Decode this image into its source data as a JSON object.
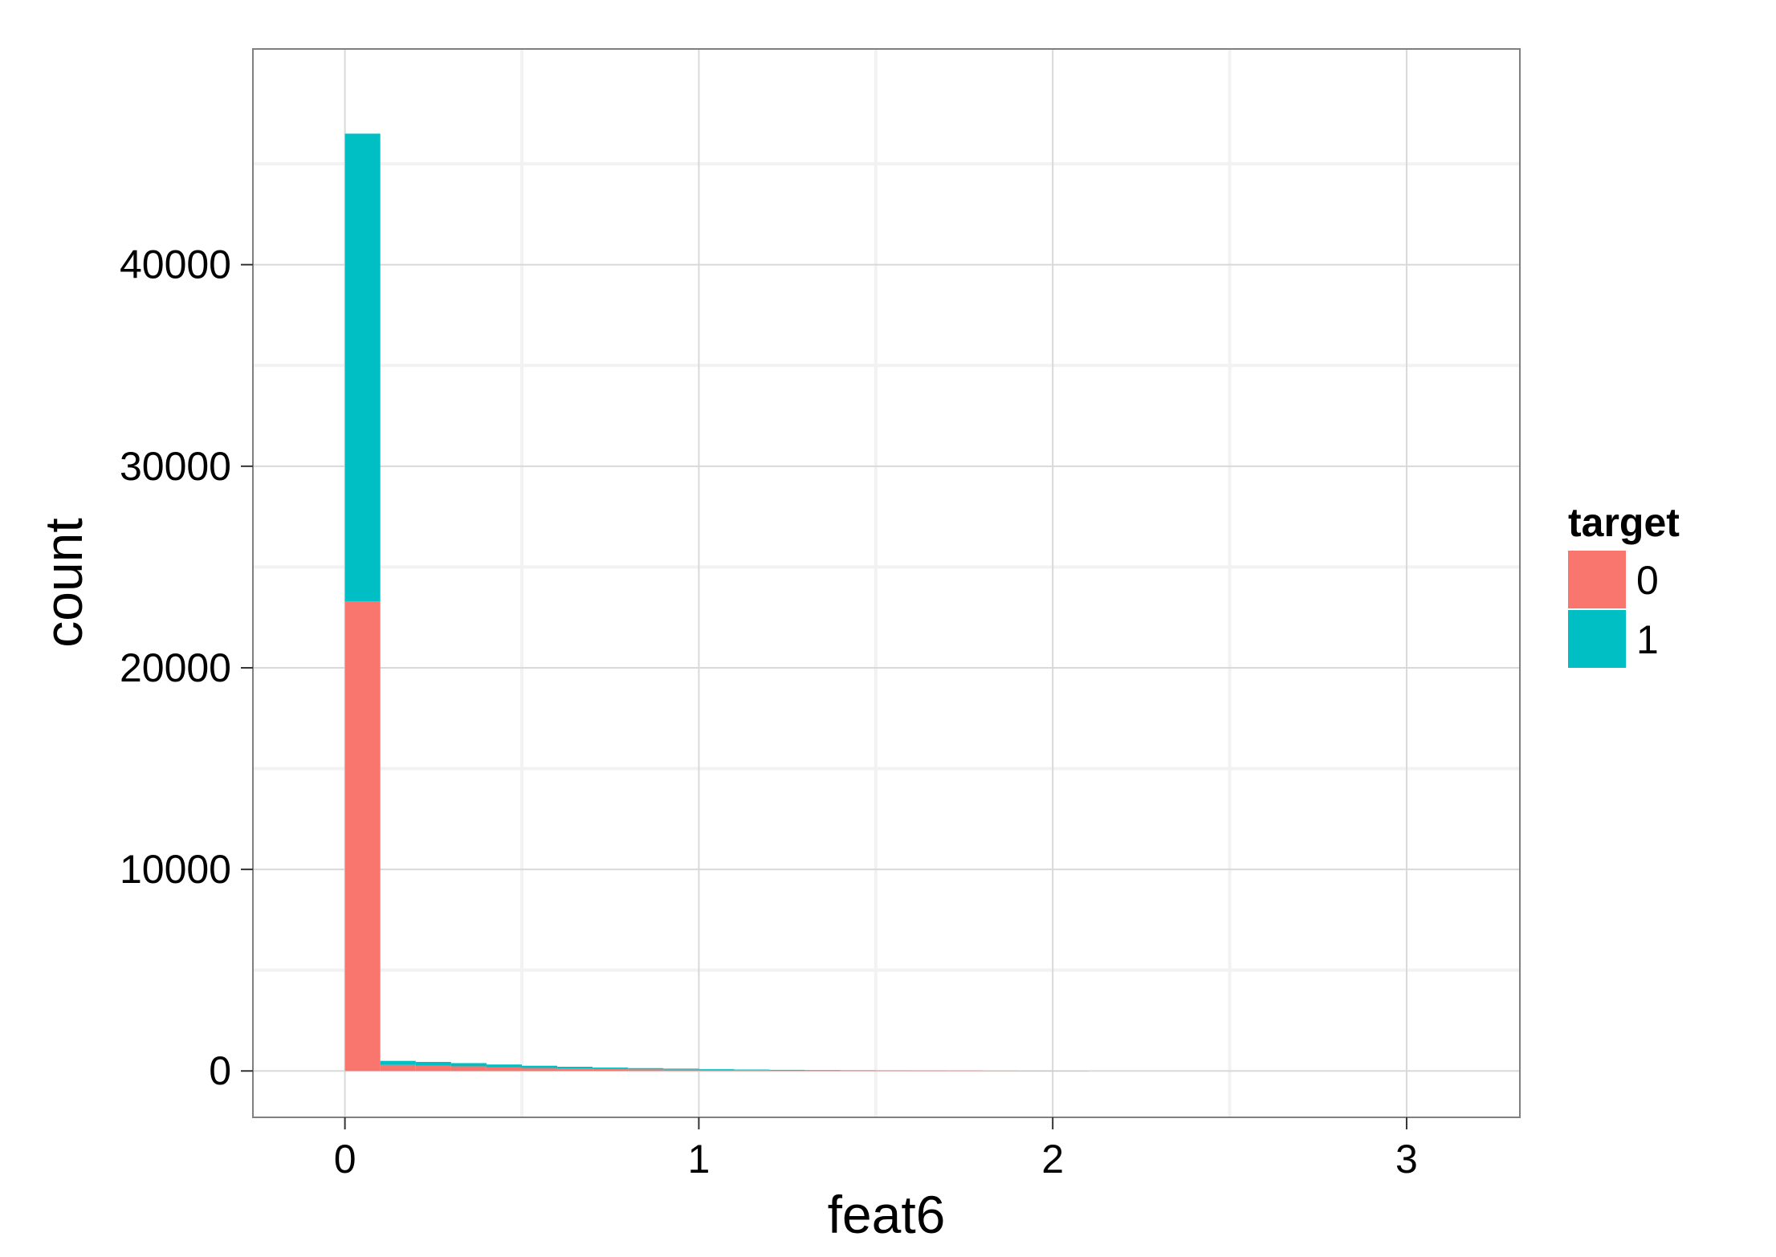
{
  "chart_data": {
    "type": "bar",
    "subtype": "stacked-histogram",
    "xlabel": "feat6",
    "ylabel": "count",
    "xlim": [
      -0.26,
      3.32
    ],
    "ylim": [
      -2300,
      50700
    ],
    "x_ticks": [
      0,
      1,
      2,
      3
    ],
    "x_tick_labels": [
      "0",
      "1",
      "2",
      "3"
    ],
    "y_ticks": [
      0,
      10000,
      20000,
      30000,
      40000
    ],
    "y_tick_labels": [
      "0",
      "10000",
      "20000",
      "30000",
      "40000"
    ],
    "grid": true,
    "legend": {
      "title": "target",
      "position": "right",
      "entries": [
        {
          "label": "0",
          "color": "#F8766D"
        },
        {
          "label": "1",
          "color": "#00BFC4"
        }
      ]
    },
    "bin_width": 0.1,
    "bins": [
      0.0,
      0.1,
      0.2,
      0.3,
      0.4,
      0.5,
      0.6,
      0.7,
      0.8,
      0.9,
      1.0,
      1.1,
      1.2,
      1.3,
      1.4,
      1.5,
      1.6,
      1.7,
      1.8,
      1.9,
      2.0
    ],
    "series": [
      {
        "name": "0",
        "color": "#F8766D",
        "values": [
          23300,
          300,
          270,
          230,
          190,
          150,
          120,
          100,
          80,
          65,
          55,
          40,
          30,
          25,
          20,
          15,
          12,
          10,
          8,
          6,
          4
        ]
      },
      {
        "name": "1",
        "color": "#00BFC4",
        "values": [
          23200,
          200,
          180,
          160,
          130,
          110,
          90,
          70,
          60,
          50,
          40,
          30,
          25,
          20,
          15,
          12,
          10,
          8,
          6,
          5,
          3
        ]
      }
    ]
  },
  "colors": {
    "background": "#FFFFFF",
    "panel_border": "#7F7F7F",
    "grid_major": "#D9D9D9",
    "grid_minor": "#F2F2F2"
  }
}
